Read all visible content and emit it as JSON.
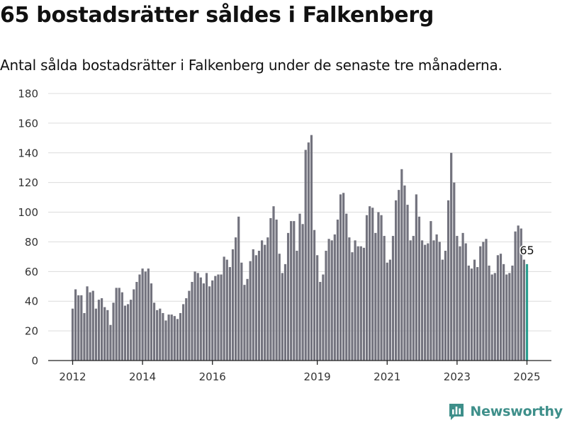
{
  "header": {
    "title": "65 bostadsrätter såldes i Falkenberg",
    "subtitle": "Antal sålda bostadsrätter i Falkenberg under de senaste tre månaderna."
  },
  "brand": {
    "name": "Newsworthy",
    "color": "#3e8f8a"
  },
  "chart_data": {
    "type": "bar",
    "title": "",
    "xlabel": "",
    "ylabel": "",
    "ylim": [
      0,
      180
    ],
    "y_ticks": [
      0,
      20,
      40,
      60,
      80,
      100,
      120,
      140,
      160,
      180
    ],
    "x_tick_labels": [
      {
        "label": "2012",
        "at": "2012-01"
      },
      {
        "label": "2014",
        "at": "2014-01"
      },
      {
        "label": "2016",
        "at": "2016-01"
      },
      {
        "label": "2019",
        "at": "2019-01"
      },
      {
        "label": "2021",
        "at": "2021-01"
      },
      {
        "label": "2023",
        "at": "2023-01"
      },
      {
        "label": "2025",
        "at": "2025-01"
      }
    ],
    "grid": true,
    "bar_color": "#73737e",
    "highlight_color": "#2a9d8f",
    "highlight_label": "65",
    "categories": [
      "2012-01",
      "2012-02",
      "2012-03",
      "2012-04",
      "2012-05",
      "2012-06",
      "2012-07",
      "2012-08",
      "2012-09",
      "2012-10",
      "2012-11",
      "2012-12",
      "2013-01",
      "2013-02",
      "2013-03",
      "2013-04",
      "2013-05",
      "2013-06",
      "2013-07",
      "2013-08",
      "2013-09",
      "2013-10",
      "2013-11",
      "2013-12",
      "2014-01",
      "2014-02",
      "2014-03",
      "2014-04",
      "2014-05",
      "2014-06",
      "2014-07",
      "2014-08",
      "2014-09",
      "2014-10",
      "2014-11",
      "2014-12",
      "2015-01",
      "2015-02",
      "2015-03",
      "2015-04",
      "2015-05",
      "2015-06",
      "2015-07",
      "2015-08",
      "2015-09",
      "2015-10",
      "2015-11",
      "2015-12",
      "2016-01",
      "2016-02",
      "2016-03",
      "2016-04",
      "2016-05",
      "2016-06",
      "2016-07",
      "2016-08",
      "2016-09",
      "2016-10",
      "2016-11",
      "2016-12",
      "2017-01",
      "2017-02",
      "2017-03",
      "2017-04",
      "2017-05",
      "2017-06",
      "2017-07",
      "2017-08",
      "2017-09",
      "2017-10",
      "2017-11",
      "2017-12",
      "2018-01",
      "2018-02",
      "2018-03",
      "2018-04",
      "2018-05",
      "2018-06",
      "2018-07",
      "2018-08",
      "2018-09",
      "2018-10",
      "2018-11",
      "2018-12",
      "2019-01",
      "2019-02",
      "2019-03",
      "2019-04",
      "2019-05",
      "2019-06",
      "2019-07",
      "2019-08",
      "2019-09",
      "2019-10",
      "2019-11",
      "2019-12",
      "2020-01",
      "2020-02",
      "2020-03",
      "2020-04",
      "2020-05",
      "2020-06",
      "2020-07",
      "2020-08",
      "2020-09",
      "2020-10",
      "2020-11",
      "2020-12",
      "2021-01",
      "2021-02",
      "2021-03",
      "2021-04",
      "2021-05",
      "2021-06",
      "2021-07",
      "2021-08",
      "2021-09",
      "2021-10",
      "2021-11",
      "2021-12",
      "2022-01",
      "2022-02",
      "2022-03",
      "2022-04",
      "2022-05",
      "2022-06",
      "2022-07",
      "2022-08",
      "2022-09",
      "2022-10",
      "2022-11",
      "2022-12",
      "2023-01",
      "2023-02",
      "2023-03",
      "2023-04",
      "2023-05",
      "2023-06",
      "2023-07",
      "2023-08",
      "2023-09",
      "2023-10",
      "2023-11",
      "2023-12",
      "2024-01",
      "2024-02",
      "2024-03",
      "2024-04",
      "2024-05",
      "2024-06",
      "2024-07",
      "2024-08",
      "2024-09",
      "2024-10",
      "2024-11",
      "2024-12",
      "2025-01"
    ],
    "values": [
      35,
      48,
      44,
      44,
      32,
      50,
      46,
      47,
      35,
      41,
      42,
      36,
      34,
      24,
      39,
      49,
      49,
      46,
      37,
      38,
      41,
      48,
      53,
      58,
      62,
      60,
      62,
      52,
      39,
      34,
      35,
      32,
      27,
      31,
      31,
      30,
      28,
      32,
      38,
      42,
      47,
      53,
      60,
      59,
      56,
      52,
      59,
      50,
      54,
      57,
      58,
      58,
      70,
      68,
      63,
      75,
      83,
      97,
      66,
      51,
      55,
      67,
      75,
      71,
      74,
      81,
      78,
      83,
      96,
      104,
      95,
      72,
      59,
      65,
      86,
      94,
      94,
      74,
      99,
      92,
      142,
      147,
      152,
      88,
      71,
      53,
      58,
      74,
      82,
      81,
      85,
      95,
      112,
      113,
      99,
      83,
      73,
      81,
      77,
      77,
      76,
      98,
      104,
      103,
      86,
      100,
      98,
      84,
      66,
      68,
      84,
      108,
      115,
      129,
      118,
      105,
      81,
      84,
      112,
      97,
      81,
      78,
      79,
      94,
      81,
      85,
      80,
      68,
      74,
      108,
      140,
      120,
      84,
      77,
      86,
      79,
      64,
      62,
      68,
      63,
      77,
      80,
      82,
      64,
      58,
      59,
      71,
      72,
      65,
      58,
      59,
      64,
      87,
      91,
      89,
      68,
      65
    ]
  }
}
